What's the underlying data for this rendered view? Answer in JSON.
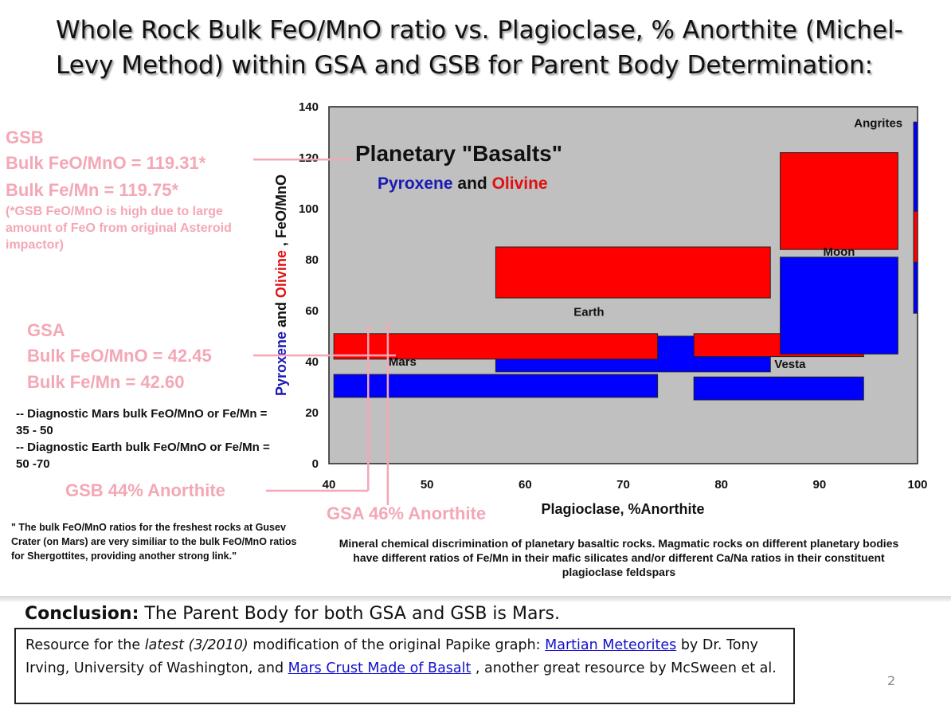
{
  "slide": {
    "title": "Whole Rock Bulk FeO/MnO ratio vs. Plagioclase, % Anorthite (Michel-Levy Method) within GSA and GSB for Parent Body Determination:",
    "page_number": "2"
  },
  "annotations": {
    "gsb_head": "GSB",
    "gsb_feo_mno": "Bulk FeO/MnO = 119.31*",
    "gsb_fe_mn": "Bulk Fe/Mn = 119.75*",
    "gsb_note": "(*GSB FeO/MnO is high due to large amount of FeO from original Asteroid impactor)",
    "gsa_head": "GSA",
    "gsa_feo_mno": "Bulk FeO/MnO = 42.45",
    "gsa_fe_mn": "Bulk Fe/Mn = 42.60",
    "diag_mars": "-- Diagnostic Mars bulk FeO/MnO or Fe/Mn = 35 - 50",
    "diag_earth": "-- Diagnostic Earth bulk FeO/MnO or Fe/Mn = 50 -70",
    "gsb_anorthite": "GSB 44% Anorthite",
    "gsa_anorthite": "GSA 46% Anorthite",
    "quote": "\" The bulk FeO/MnO ratios for the freshest rocks at Gusev Crater (on Mars) are very similiar to the bulk FeO/MnO ratios for Shergottites, providing another strong link.\"",
    "caption": "Mineral chemical discrimination of planetary basaltic rocks. Magmatic rocks on different planetary bodies have different ratios of Fe/Mn in their mafic silicates and/or different Ca/Na ratios in their constituent plagioclase feldspars"
  },
  "conclusion": {
    "label": "Conclusion:",
    "text": " The Parent Body for both GSA and GSB is Mars."
  },
  "resource": {
    "t1": "Resource for the ",
    "t2": "latest (3/2010)",
    "t3": " modification of the original Papike graph:   ",
    "link1": "Martian Meteorites",
    "t4": " by Dr. Tony Irving, University of Washington, and ",
    "link2": "Mars Crust Made of Basalt",
    "t5": " , another great resource by McSween et al."
  },
  "colors": {
    "plot_bg": "#c0c0c0",
    "red": "#ff0000",
    "blue": "#0000ff",
    "pink": "#f4a7b5"
  },
  "chart_data": {
    "type": "area",
    "title": "Planetary \"Basalts\"",
    "subtitle_parts": [
      {
        "text": "Pyroxene",
        "color": "#1a1ab4"
      },
      {
        "text": " and ",
        "color": "#111111"
      },
      {
        "text": "Olivine",
        "color": "#e01010"
      }
    ],
    "xlabel": "Plagioclase, %Anorthite",
    "ylabel_parts": [
      {
        "text": "Pyroxene",
        "color": "#1a1ab4"
      },
      {
        "text": " and ",
        "color": "#111111"
      },
      {
        "text": "Olivine",
        "color": "#e01010"
      },
      {
        "text": " , FeO/MnO",
        "color": "#111111"
      }
    ],
    "xlim": [
      40,
      100
    ],
    "ylim": [
      0,
      140
    ],
    "xticks": [
      40,
      50,
      60,
      70,
      80,
      90,
      100
    ],
    "yticks": [
      0,
      20,
      40,
      60,
      80,
      100,
      120,
      140
    ],
    "regions": [
      {
        "name": "Earth",
        "mineral": "pyroxene",
        "color": "#0000ff",
        "x0": 57,
        "x1": 85,
        "y0": 36,
        "y1": 50
      },
      {
        "name": "Earth",
        "mineral": "olivine",
        "color": "#ff0000",
        "x0": 57,
        "x1": 85,
        "y0": 65,
        "y1": 85
      },
      {
        "name": "Mars",
        "mineral": "pyroxene",
        "color": "#0000ff",
        "x0": 40.5,
        "x1": 73.5,
        "y0": 26,
        "y1": 35
      },
      {
        "name": "Mars",
        "mineral": "olivine",
        "color": "#ff0000",
        "x0": 40.5,
        "x1": 73.5,
        "y0": 41,
        "y1": 51
      },
      {
        "name": "Vesta",
        "mineral": "pyroxene",
        "color": "#0000ff",
        "x0": 77.2,
        "x1": 94.5,
        "y0": 25,
        "y1": 34
      },
      {
        "name": "Vesta",
        "mineral": "olivine",
        "color": "#ff0000",
        "x0": 77.2,
        "x1": 94.5,
        "y0": 42,
        "y1": 51
      },
      {
        "name": "Moon",
        "mineral": "pyroxene",
        "color": "#0000ff",
        "x0": 86,
        "x1": 98,
        "y0": 43,
        "y1": 81
      },
      {
        "name": "Moon",
        "mineral": "olivine",
        "color": "#ff0000",
        "x0": 86,
        "x1": 98,
        "y0": 84,
        "y1": 122
      },
      {
        "name": "Angrites",
        "mineral": "pyroxene",
        "color": "#0000ff",
        "x0": 99.6,
        "x1": 100,
        "y0": 59,
        "y1": 134
      },
      {
        "name": "Angrites",
        "mineral": "olivine",
        "color": "#ff0000",
        "x0": 99.6,
        "x1": 100,
        "y0": 79,
        "y1": 99
      }
    ],
    "region_labels": [
      {
        "text": "Earth",
        "x": 66.5,
        "y": 58
      },
      {
        "text": "Mars",
        "x": 47.5,
        "y": 38.5
      },
      {
        "text": "Vesta",
        "x": 87,
        "y": 37.5
      },
      {
        "text": "Moon",
        "x": 92,
        "y": 81.5
      },
      {
        "text": "Angrites",
        "x": 96,
        "y": 132
      }
    ],
    "samples": [
      {
        "name": "GSA",
        "anorthite": 46,
        "feo_mno": 42.45
      },
      {
        "name": "GSB",
        "anorthite": 44,
        "feo_mno": 119.31
      }
    ]
  }
}
